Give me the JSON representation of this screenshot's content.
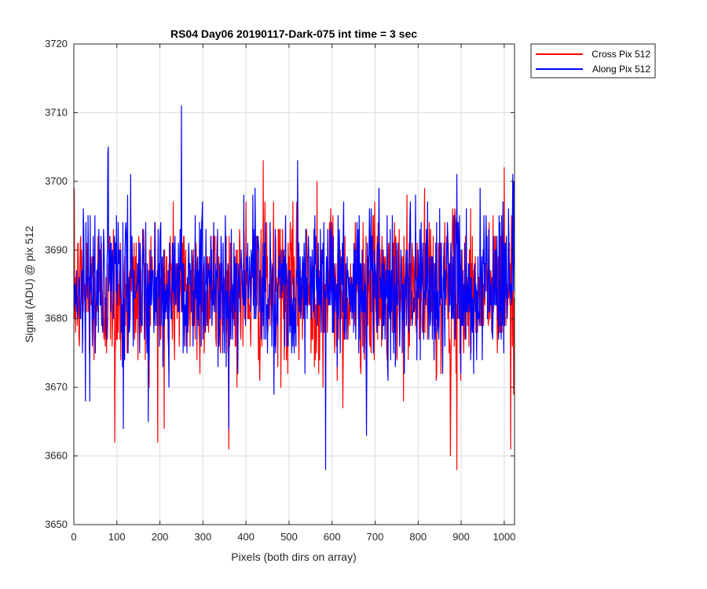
{
  "chart_data": {
    "type": "line",
    "title": "RS04 Day06 20190117-Dark-075 int time = 3 sec",
    "xlabel": "Pixels (both dirs on array)",
    "ylabel": "Signal (ADU) @ pix 512",
    "xlim": [
      0,
      1024
    ],
    "ylim": [
      3650,
      3720
    ],
    "xticks": [
      0,
      100,
      200,
      300,
      400,
      500,
      600,
      700,
      800,
      900,
      1000
    ],
    "yticks": [
      3650,
      3660,
      3670,
      3680,
      3690,
      3700,
      3710,
      3720
    ],
    "grid": true,
    "legend_position": "outside-top-right",
    "series": [
      {
        "name": "Cross Pix 512",
        "color": "#ff0000",
        "mean": 3684,
        "spread": 5.5,
        "n_points": 1024,
        "notable_points": [
          {
            "x": 400,
            "y": 3697
          },
          {
            "x": 440,
            "y": 3703
          },
          {
            "x": 875,
            "y": 3660
          },
          {
            "x": 890,
            "y": 3658
          },
          {
            "x": 1000,
            "y": 3702
          },
          {
            "x": 1015,
            "y": 3661
          },
          {
            "x": 95,
            "y": 3662
          },
          {
            "x": 210,
            "y": 3664
          },
          {
            "x": 565,
            "y": 3700
          },
          {
            "x": 625,
            "y": 3667
          }
        ]
      },
      {
        "name": "Along Pix 512",
        "color": "#0000ff",
        "mean": 3685,
        "spread": 5.5,
        "n_points": 1024,
        "notable_points": [
          {
            "x": 250,
            "y": 3711
          },
          {
            "x": 80,
            "y": 3705
          },
          {
            "x": 585,
            "y": 3658
          },
          {
            "x": 680,
            "y": 3663
          },
          {
            "x": 115,
            "y": 3664
          },
          {
            "x": 360,
            "y": 3664
          },
          {
            "x": 1020,
            "y": 3701
          },
          {
            "x": 520,
            "y": 3703
          }
        ]
      }
    ]
  }
}
